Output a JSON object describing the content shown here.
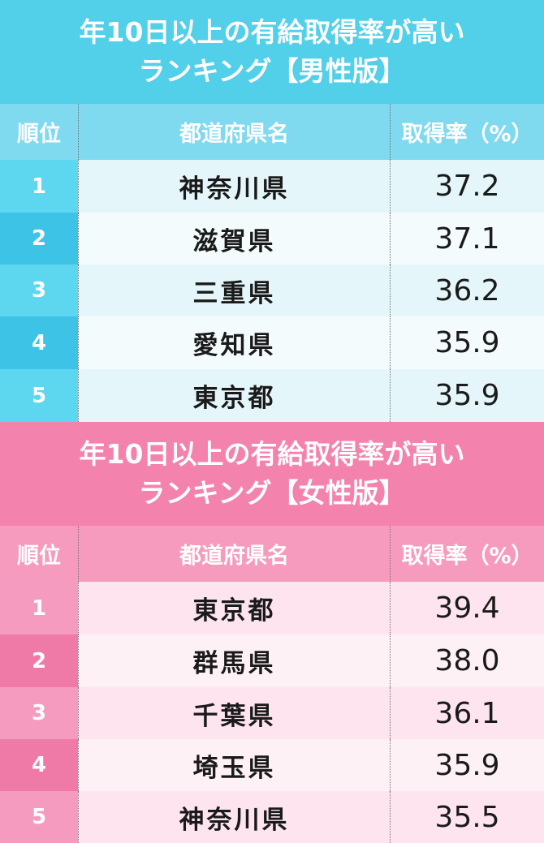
{
  "chart_data": [
    {
      "type": "table",
      "title_line1": "年10日以上の有給取得率が高い",
      "title_line2": "ランキング【男性版】",
      "columns": [
        "順位",
        "都道府県名",
        "取得率（%）"
      ],
      "rows": [
        {
          "rank": "1",
          "prefecture": "神奈川県",
          "rate": "37.2"
        },
        {
          "rank": "2",
          "prefecture": "滋賀県",
          "rate": "37.1"
        },
        {
          "rank": "3",
          "prefecture": "三重県",
          "rate": "36.2"
        },
        {
          "rank": "4",
          "prefecture": "愛知県",
          "rate": "35.9"
        },
        {
          "rank": "5",
          "prefecture": "東京都",
          "rate": "35.9"
        }
      ]
    },
    {
      "type": "table",
      "title_line1": "年10日以上の有給取得率が高い",
      "title_line2": "ランキング【女性版】",
      "columns": [
        "順位",
        "都道府県名",
        "取得率（%）"
      ],
      "rows": [
        {
          "rank": "1",
          "prefecture": "東京都",
          "rate": "39.4"
        },
        {
          "rank": "2",
          "prefecture": "群馬県",
          "rate": "38.0"
        },
        {
          "rank": "3",
          "prefecture": "千葉県",
          "rate": "36.1"
        },
        {
          "rank": "4",
          "prefecture": "埼玉県",
          "rate": "35.9"
        },
        {
          "rank": "5",
          "prefecture": "神奈川県",
          "rate": "35.5"
        }
      ]
    }
  ]
}
